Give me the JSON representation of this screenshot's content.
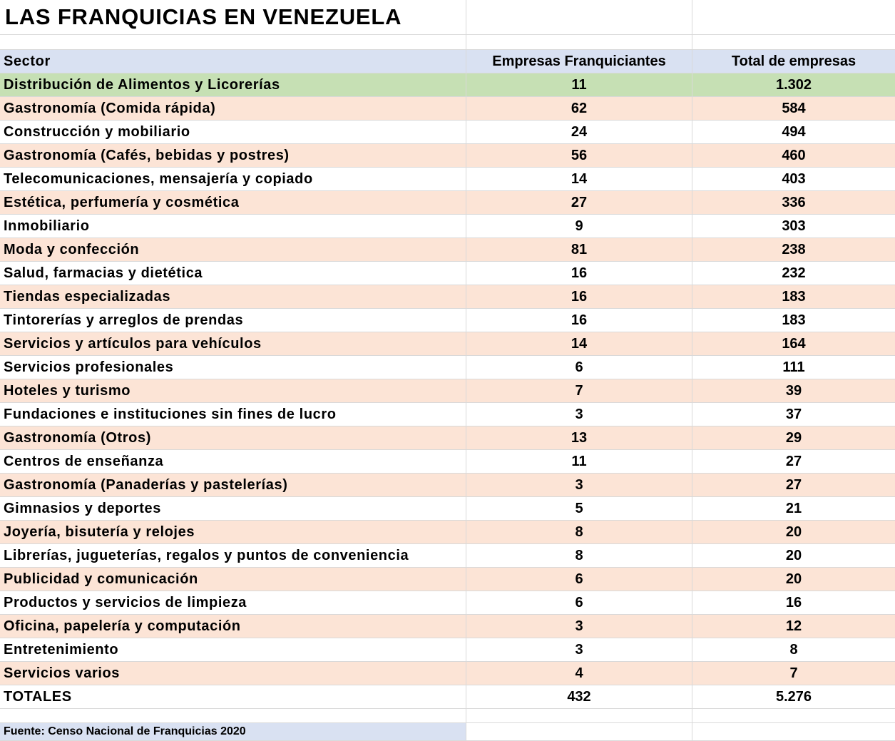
{
  "title": "LAS FRANQUICIAS EN VENEZUELA",
  "columns": [
    "Sector",
    "Empresas Franquiciantes",
    "Total de empresas"
  ],
  "rows": [
    {
      "sector": "Distribución de Alimentos y Licorerías",
      "franquiciantes": "11",
      "total": "1.302",
      "fill": "green"
    },
    {
      "sector": "Gastronomía (Comida rápida)",
      "franquiciantes": "62",
      "total": "584",
      "fill": "peach"
    },
    {
      "sector": "Construcción y mobiliario",
      "franquiciantes": "24",
      "total": "494",
      "fill": "white"
    },
    {
      "sector": "Gastronomía (Cafés, bebidas y postres)",
      "franquiciantes": "56",
      "total": "460",
      "fill": "peach"
    },
    {
      "sector": "Telecomunicaciones, mensajería y copiado",
      "franquiciantes": "14",
      "total": "403",
      "fill": "white"
    },
    {
      "sector": "Estética, perfumería y cosmética",
      "franquiciantes": "27",
      "total": "336",
      "fill": "peach"
    },
    {
      "sector": "Inmobiliario",
      "franquiciantes": "9",
      "total": "303",
      "fill": "white"
    },
    {
      "sector": "Moda y confección",
      "franquiciantes": "81",
      "total": "238",
      "fill": "peach"
    },
    {
      "sector": "Salud, farmacias y dietética",
      "franquiciantes": "16",
      "total": "232",
      "fill": "white"
    },
    {
      "sector": "Tiendas especializadas",
      "franquiciantes": "16",
      "total": "183",
      "fill": "peach"
    },
    {
      "sector": "Tintorerías y arreglos de prendas",
      "franquiciantes": "16",
      "total": "183",
      "fill": "white"
    },
    {
      "sector": "Servicios y artículos para vehículos",
      "franquiciantes": "14",
      "total": "164",
      "fill": "peach"
    },
    {
      "sector": "Servicios profesionales",
      "franquiciantes": "6",
      "total": "111",
      "fill": "white"
    },
    {
      "sector": "Hoteles y turismo",
      "franquiciantes": "7",
      "total": "39",
      "fill": "peach"
    },
    {
      "sector": "Fundaciones e instituciones sin fines de lucro",
      "franquiciantes": "3",
      "total": "37",
      "fill": "white"
    },
    {
      "sector": "Gastronomía (Otros)",
      "franquiciantes": "13",
      "total": "29",
      "fill": "peach"
    },
    {
      "sector": "Centros de enseñanza",
      "franquiciantes": "11",
      "total": "27",
      "fill": "white"
    },
    {
      "sector": "Gastronomía (Panaderías y pastelerías)",
      "franquiciantes": "3",
      "total": "27",
      "fill": "peach"
    },
    {
      "sector": "Gimnasios y deportes",
      "franquiciantes": "5",
      "total": "21",
      "fill": "white"
    },
    {
      "sector": "Joyería, bisutería y relojes",
      "franquiciantes": "8",
      "total": "20",
      "fill": "peach"
    },
    {
      "sector": "Librerías, jugueterías, regalos y puntos de conveniencia",
      "franquiciantes": "8",
      "total": "20",
      "fill": "white"
    },
    {
      "sector": "Publicidad y comunicación",
      "franquiciantes": "6",
      "total": "20",
      "fill": "peach"
    },
    {
      "sector": "Productos y servicios de limpieza",
      "franquiciantes": "6",
      "total": "16",
      "fill": "white"
    },
    {
      "sector": "Oficina, papelería y computación",
      "franquiciantes": "3",
      "total": "12",
      "fill": "peach"
    },
    {
      "sector": "Entretenimiento",
      "franquiciantes": "3",
      "total": "8",
      "fill": "white"
    },
    {
      "sector": "Servicios varios",
      "franquiciantes": "4",
      "total": "7",
      "fill": "peach"
    }
  ],
  "totals": {
    "label": "TOTALES",
    "franquiciantes": "432",
    "total": "5.276"
  },
  "source": "Fuente: Censo Nacional de Franquicias 2020",
  "colors": {
    "header": "#d9e1f2",
    "green": "#c6e0b4",
    "peach": "#fce4d6",
    "white": "#ffffff",
    "grid": "#d9d9d9"
  }
}
